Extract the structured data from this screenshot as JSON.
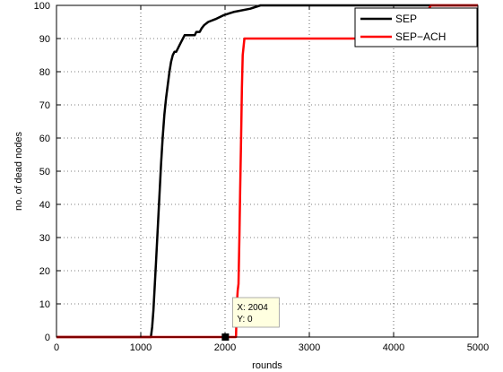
{
  "chart_data": {
    "type": "line",
    "title": "",
    "xlabel": "rounds",
    "ylabel": "no. of dead nodes",
    "xlim": [
      0,
      5000
    ],
    "ylim": [
      0,
      100
    ],
    "x_ticks": [
      0,
      1000,
      2000,
      3000,
      4000,
      5000
    ],
    "y_ticks": [
      0,
      10,
      20,
      30,
      40,
      50,
      60,
      70,
      80,
      90,
      100
    ],
    "x_tick_labels": [
      "0",
      "1000",
      "2000",
      "3000",
      "4000",
      "5000"
    ],
    "y_tick_labels": [
      "0",
      "10",
      "20",
      "30",
      "40",
      "50",
      "60",
      "70",
      "80",
      "90",
      "100"
    ],
    "grid": true,
    "legend_position": "top-right",
    "series": [
      {
        "name": "SEP",
        "color": "#000000",
        "points": [
          [
            0,
            0
          ],
          [
            1120,
            0
          ],
          [
            1135,
            3
          ],
          [
            1150,
            8
          ],
          [
            1165,
            15
          ],
          [
            1180,
            22
          ],
          [
            1200,
            32
          ],
          [
            1220,
            42
          ],
          [
            1240,
            52
          ],
          [
            1260,
            60
          ],
          [
            1280,
            67
          ],
          [
            1300,
            72
          ],
          [
            1320,
            76
          ],
          [
            1340,
            80
          ],
          [
            1360,
            83
          ],
          [
            1380,
            85
          ],
          [
            1400,
            86
          ],
          [
            1420,
            86
          ],
          [
            1440,
            87
          ],
          [
            1460,
            88
          ],
          [
            1480,
            89
          ],
          [
            1500,
            90
          ],
          [
            1520,
            91
          ],
          [
            1640,
            91
          ],
          [
            1660,
            92
          ],
          [
            1700,
            92
          ],
          [
            1720,
            93
          ],
          [
            1750,
            94
          ],
          [
            1800,
            95
          ],
          [
            1900,
            96
          ],
          [
            1980,
            97
          ],
          [
            2100,
            98
          ],
          [
            2300,
            99
          ],
          [
            2420,
            100
          ],
          [
            5000,
            100
          ]
        ]
      },
      {
        "name": "SEP−ACH",
        "color": "#ff0000",
        "points": [
          [
            0,
            0
          ],
          [
            2130,
            0
          ],
          [
            2140,
            10
          ],
          [
            2150,
            14
          ],
          [
            2160,
            16
          ],
          [
            2170,
            30
          ],
          [
            2180,
            45
          ],
          [
            2190,
            60
          ],
          [
            2200,
            75
          ],
          [
            2210,
            85
          ],
          [
            2230,
            90
          ],
          [
            4300,
            90
          ],
          [
            4380,
            98
          ],
          [
            4420,
            99
          ],
          [
            4440,
            100
          ],
          [
            5000,
            100
          ]
        ]
      }
    ],
    "annotation": {
      "x": 2004,
      "y": 0,
      "line1": "X: 2004",
      "line2": "Y: 0"
    }
  }
}
